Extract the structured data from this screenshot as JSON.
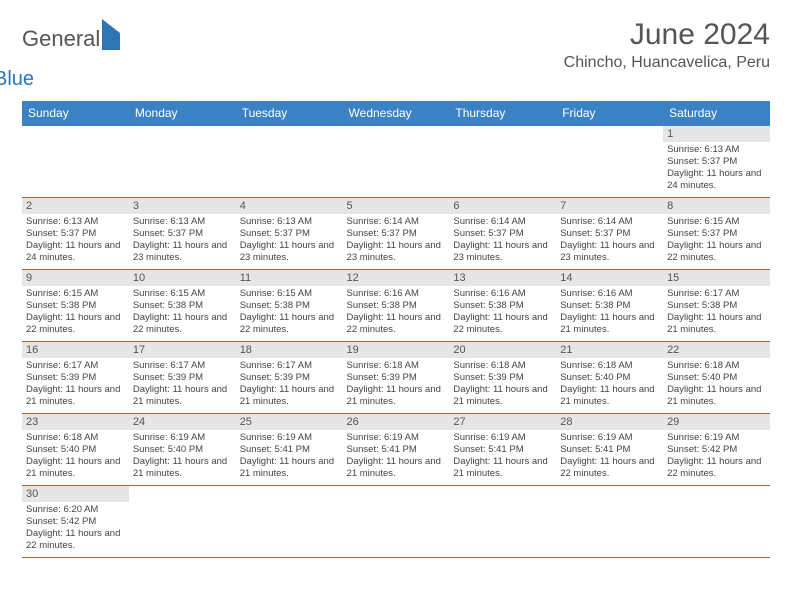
{
  "logo": {
    "general": "General",
    "blue": "Blue"
  },
  "title": "June 2024",
  "location": "Chincho, Huancavelica, Peru",
  "dayHeaders": [
    "Sunday",
    "Monday",
    "Tuesday",
    "Wednesday",
    "Thursday",
    "Friday",
    "Saturday"
  ],
  "colors": {
    "headerBg": "#3b82c4",
    "headerText": "#ffffff",
    "dayNumBg": "#e6e6e6",
    "border": "#3b82c4",
    "logoBlue": "#2e75b6",
    "textGray": "#555555"
  },
  "weeks": [
    [
      null,
      null,
      null,
      null,
      null,
      null,
      {
        "n": "1",
        "sr": "6:13 AM",
        "ss": "5:37 PM",
        "dl": "11 hours and 24 minutes."
      }
    ],
    [
      {
        "n": "2",
        "sr": "6:13 AM",
        "ss": "5:37 PM",
        "dl": "11 hours and 24 minutes."
      },
      {
        "n": "3",
        "sr": "6:13 AM",
        "ss": "5:37 PM",
        "dl": "11 hours and 23 minutes."
      },
      {
        "n": "4",
        "sr": "6:13 AM",
        "ss": "5:37 PM",
        "dl": "11 hours and 23 minutes."
      },
      {
        "n": "5",
        "sr": "6:14 AM",
        "ss": "5:37 PM",
        "dl": "11 hours and 23 minutes."
      },
      {
        "n": "6",
        "sr": "6:14 AM",
        "ss": "5:37 PM",
        "dl": "11 hours and 23 minutes."
      },
      {
        "n": "7",
        "sr": "6:14 AM",
        "ss": "5:37 PM",
        "dl": "11 hours and 23 minutes."
      },
      {
        "n": "8",
        "sr": "6:15 AM",
        "ss": "5:37 PM",
        "dl": "11 hours and 22 minutes."
      }
    ],
    [
      {
        "n": "9",
        "sr": "6:15 AM",
        "ss": "5:38 PM",
        "dl": "11 hours and 22 minutes."
      },
      {
        "n": "10",
        "sr": "6:15 AM",
        "ss": "5:38 PM",
        "dl": "11 hours and 22 minutes."
      },
      {
        "n": "11",
        "sr": "6:15 AM",
        "ss": "5:38 PM",
        "dl": "11 hours and 22 minutes."
      },
      {
        "n": "12",
        "sr": "6:16 AM",
        "ss": "5:38 PM",
        "dl": "11 hours and 22 minutes."
      },
      {
        "n": "13",
        "sr": "6:16 AM",
        "ss": "5:38 PM",
        "dl": "11 hours and 22 minutes."
      },
      {
        "n": "14",
        "sr": "6:16 AM",
        "ss": "5:38 PM",
        "dl": "11 hours and 21 minutes."
      },
      {
        "n": "15",
        "sr": "6:17 AM",
        "ss": "5:38 PM",
        "dl": "11 hours and 21 minutes."
      }
    ],
    [
      {
        "n": "16",
        "sr": "6:17 AM",
        "ss": "5:39 PM",
        "dl": "11 hours and 21 minutes."
      },
      {
        "n": "17",
        "sr": "6:17 AM",
        "ss": "5:39 PM",
        "dl": "11 hours and 21 minutes."
      },
      {
        "n": "18",
        "sr": "6:17 AM",
        "ss": "5:39 PM",
        "dl": "11 hours and 21 minutes."
      },
      {
        "n": "19",
        "sr": "6:18 AM",
        "ss": "5:39 PM",
        "dl": "11 hours and 21 minutes."
      },
      {
        "n": "20",
        "sr": "6:18 AM",
        "ss": "5:39 PM",
        "dl": "11 hours and 21 minutes."
      },
      {
        "n": "21",
        "sr": "6:18 AM",
        "ss": "5:40 PM",
        "dl": "11 hours and 21 minutes."
      },
      {
        "n": "22",
        "sr": "6:18 AM",
        "ss": "5:40 PM",
        "dl": "11 hours and 21 minutes."
      }
    ],
    [
      {
        "n": "23",
        "sr": "6:18 AM",
        "ss": "5:40 PM",
        "dl": "11 hours and 21 minutes."
      },
      {
        "n": "24",
        "sr": "6:19 AM",
        "ss": "5:40 PM",
        "dl": "11 hours and 21 minutes."
      },
      {
        "n": "25",
        "sr": "6:19 AM",
        "ss": "5:41 PM",
        "dl": "11 hours and 21 minutes."
      },
      {
        "n": "26",
        "sr": "6:19 AM",
        "ss": "5:41 PM",
        "dl": "11 hours and 21 minutes."
      },
      {
        "n": "27",
        "sr": "6:19 AM",
        "ss": "5:41 PM",
        "dl": "11 hours and 21 minutes."
      },
      {
        "n": "28",
        "sr": "6:19 AM",
        "ss": "5:41 PM",
        "dl": "11 hours and 22 minutes."
      },
      {
        "n": "29",
        "sr": "6:19 AM",
        "ss": "5:42 PM",
        "dl": "11 hours and 22 minutes."
      }
    ],
    [
      {
        "n": "30",
        "sr": "6:20 AM",
        "ss": "5:42 PM",
        "dl": "11 hours and 22 minutes."
      },
      null,
      null,
      null,
      null,
      null,
      null
    ]
  ],
  "labels": {
    "sunrise": "Sunrise:",
    "sunset": "Sunset:",
    "daylight": "Daylight:"
  }
}
